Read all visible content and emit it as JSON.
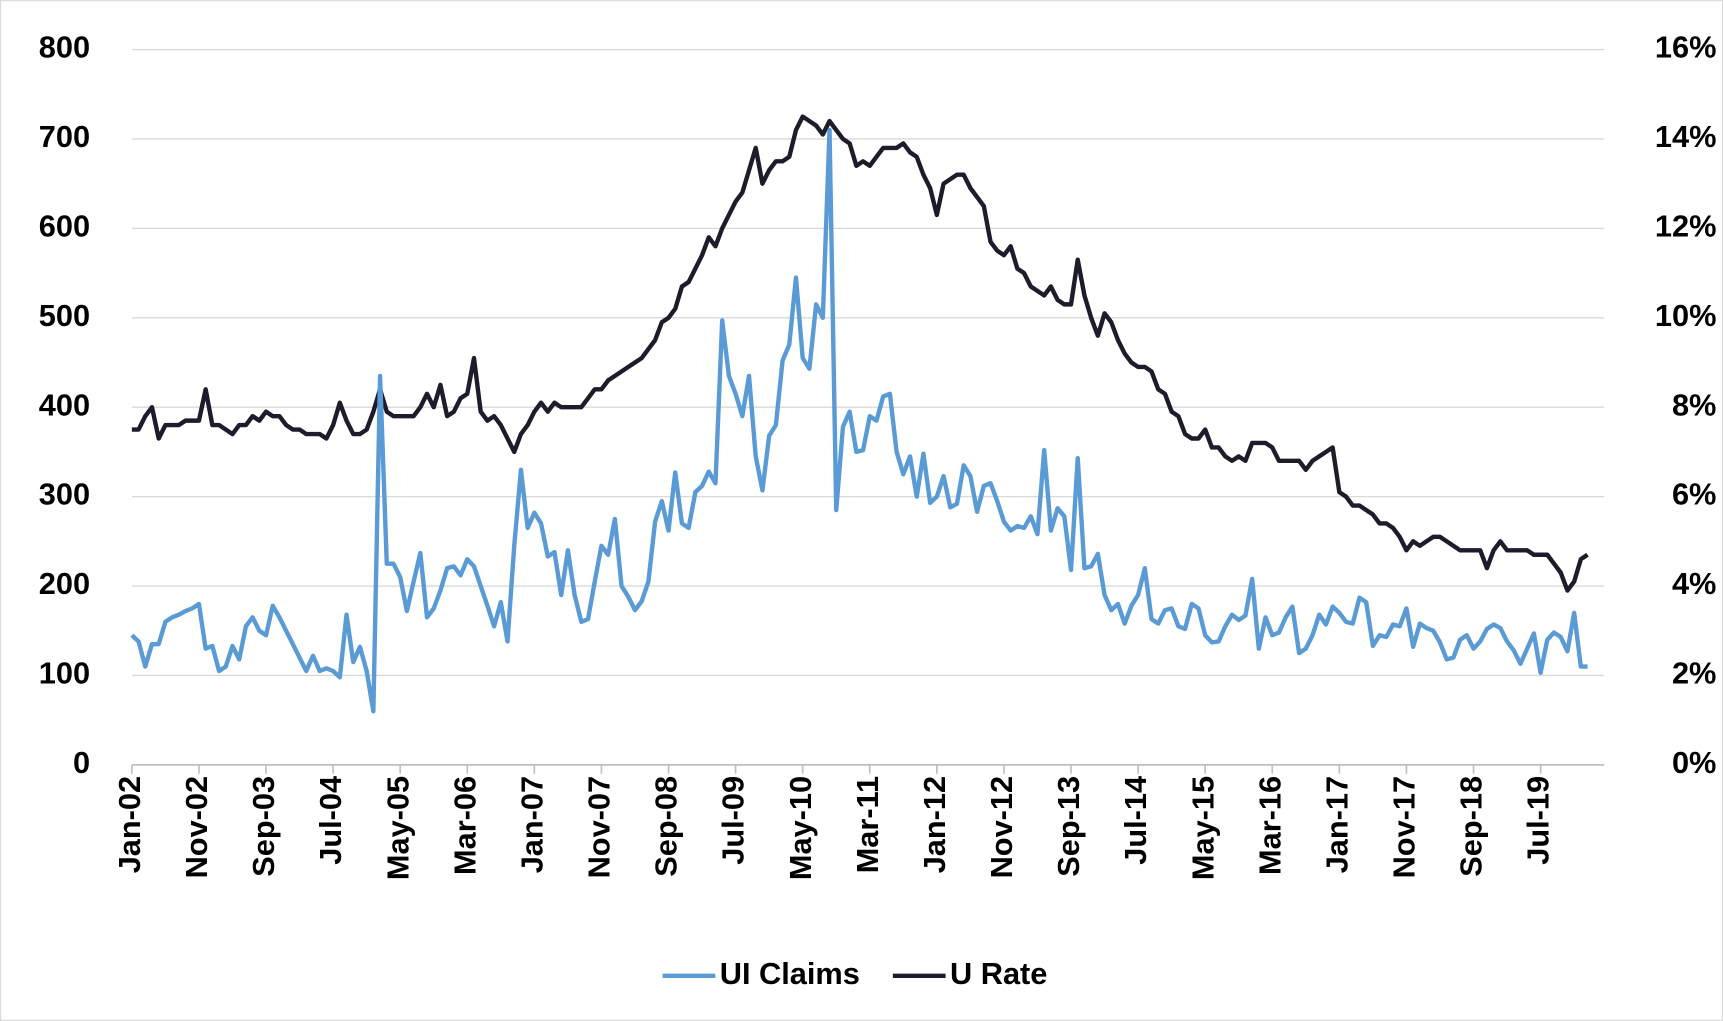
{
  "chart_data": {
    "type": "line",
    "categories": [
      "Jan-02",
      null,
      null,
      null,
      null,
      null,
      null,
      null,
      null,
      null,
      "Nov-02",
      null,
      null,
      null,
      null,
      null,
      null,
      null,
      null,
      null,
      "Sep-03",
      null,
      null,
      null,
      null,
      null,
      null,
      null,
      null,
      null,
      "Jul-04",
      null,
      null,
      null,
      null,
      null,
      null,
      null,
      null,
      null,
      "May-05",
      null,
      null,
      null,
      null,
      null,
      null,
      null,
      null,
      null,
      "Mar-06",
      null,
      null,
      null,
      null,
      null,
      null,
      null,
      null,
      null,
      "Jan-07",
      null,
      null,
      null,
      null,
      null,
      null,
      null,
      null,
      null,
      "Nov-07",
      null,
      null,
      null,
      null,
      null,
      null,
      null,
      null,
      null,
      "Sep-08",
      null,
      null,
      null,
      null,
      null,
      null,
      null,
      null,
      null,
      "Jul-09",
      null,
      null,
      null,
      null,
      null,
      null,
      null,
      null,
      null,
      "May-10",
      null,
      null,
      null,
      null,
      null,
      null,
      null,
      null,
      null,
      "Mar-11",
      null,
      null,
      null,
      null,
      null,
      null,
      null,
      null,
      null,
      "Jan-12",
      null,
      null,
      null,
      null,
      null,
      null,
      null,
      null,
      null,
      "Nov-12",
      null,
      null,
      null,
      null,
      null,
      null,
      null,
      null,
      null,
      "Sep-13",
      null,
      null,
      null,
      null,
      null,
      null,
      null,
      null,
      null,
      "Jul-14",
      null,
      null,
      null,
      null,
      null,
      null,
      null,
      null,
      null,
      "May-15",
      null,
      null,
      null,
      null,
      null,
      null,
      null,
      null,
      null,
      "Mar-16",
      null,
      null,
      null,
      null,
      null,
      null,
      null,
      null,
      null,
      "Jan-17",
      null,
      null,
      null,
      null,
      null,
      null,
      null,
      null,
      null,
      "Nov-17",
      null,
      null,
      null,
      null,
      null,
      null,
      null,
      null,
      null,
      "Sep-18",
      null,
      null,
      null,
      null,
      null,
      null,
      null,
      null,
      null,
      "Jul-19",
      null,
      null,
      null,
      null,
      null,
      null,
      null
    ],
    "series": [
      {
        "name": "UI Claims",
        "color": "#5b9bd5",
        "values": [
          145,
          138,
          110,
          135,
          135,
          160,
          165,
          168,
          172,
          175,
          180,
          130,
          133,
          105,
          110,
          133,
          118,
          155,
          165,
          150,
          145,
          178,
          165,
          150,
          135,
          120,
          105,
          122,
          105,
          108,
          105,
          98,
          168,
          115,
          132,
          105,
          60,
          435,
          225,
          225,
          210,
          172,
          205,
          237,
          165,
          175,
          195,
          220,
          222,
          212,
          230,
          222,
          200,
          178,
          155,
          182,
          138,
          245,
          330,
          265,
          282,
          270,
          233,
          238,
          190,
          240,
          190,
          160,
          163,
          205,
          245,
          235,
          275,
          200,
          188,
          173,
          183,
          205,
          272,
          295,
          262,
          327,
          270,
          265,
          305,
          312,
          328,
          315,
          497,
          435,
          415,
          390,
          435,
          345,
          307,
          368,
          380,
          452,
          470,
          545,
          455,
          443,
          515,
          500,
          710,
          285,
          378,
          395,
          350,
          352,
          390,
          385,
          412,
          415,
          350,
          325,
          345,
          300,
          348,
          293,
          300,
          323,
          288,
          292,
          335,
          323,
          283,
          312,
          315,
          295,
          272,
          262,
          267,
          265,
          278,
          258,
          352,
          262,
          287,
          278,
          218,
          343,
          220,
          222,
          236,
          190,
          173,
          180,
          158,
          178,
          190,
          220,
          163,
          158,
          173,
          175,
          155,
          152,
          180,
          175,
          145,
          137,
          138,
          155,
          168,
          162,
          167,
          208,
          130,
          165,
          145,
          148,
          165,
          177,
          125,
          130,
          145,
          168,
          157,
          177,
          170,
          160,
          158,
          187,
          182,
          133,
          145,
          143,
          157,
          155,
          175,
          132,
          158,
          153,
          150,
          137,
          118,
          120,
          140,
          145,
          130,
          138,
          152,
          157,
          153,
          138,
          128,
          113,
          130,
          147,
          103,
          140,
          148,
          143,
          127,
          170,
          110,
          110
        ]
      },
      {
        "name": "U Rate",
        "color": "#1c1c2b",
        "axis": "y2",
        "values": [
          7.5,
          7.5,
          7.8,
          8.0,
          7.3,
          7.6,
          7.6,
          7.6,
          7.7,
          7.7,
          7.7,
          8.4,
          7.6,
          7.6,
          7.5,
          7.4,
          7.6,
          7.6,
          7.8,
          7.7,
          7.9,
          7.8,
          7.8,
          7.6,
          7.5,
          7.5,
          7.4,
          7.4,
          7.4,
          7.3,
          7.6,
          8.1,
          7.7,
          7.4,
          7.4,
          7.5,
          7.9,
          8.4,
          7.9,
          7.8,
          7.8,
          7.8,
          7.8,
          8.0,
          8.3,
          8.0,
          8.5,
          7.8,
          7.9,
          8.2,
          8.3,
          9.1,
          7.9,
          7.7,
          7.8,
          7.6,
          7.3,
          7.0,
          7.4,
          7.6,
          7.9,
          8.1,
          7.9,
          8.1,
          8.0,
          8.0,
          8.0,
          8.0,
          8.2,
          8.4,
          8.4,
          8.6,
          8.7,
          8.8,
          8.9,
          9.0,
          9.1,
          9.3,
          9.5,
          9.9,
          10.0,
          10.2,
          10.7,
          10.8,
          11.1,
          11.4,
          11.8,
          11.6,
          12.0,
          12.3,
          12.6,
          12.8,
          13.3,
          13.8,
          13.0,
          13.3,
          13.5,
          13.5,
          13.6,
          14.2,
          14.5,
          14.4,
          14.3,
          14.1,
          14.4,
          14.2,
          14.0,
          13.9,
          13.4,
          13.5,
          13.4,
          13.6,
          13.8,
          13.8,
          13.8,
          13.9,
          13.7,
          13.6,
          13.2,
          12.9,
          12.3,
          13.0,
          13.1,
          13.2,
          13.2,
          12.9,
          12.7,
          12.5,
          11.7,
          11.5,
          11.4,
          11.6,
          11.1,
          11.0,
          10.7,
          10.6,
          10.5,
          10.7,
          10.4,
          10.3,
          10.3,
          11.3,
          10.5,
          10.0,
          9.6,
          10.1,
          9.9,
          9.5,
          9.2,
          9.0,
          8.9,
          8.9,
          8.8,
          8.4,
          8.3,
          7.9,
          7.8,
          7.4,
          7.3,
          7.3,
          7.5,
          7.1,
          7.1,
          6.9,
          6.8,
          6.9,
          6.8,
          7.2,
          7.2,
          7.2,
          7.1,
          6.8,
          6.8,
          6.8,
          6.8,
          6.6,
          6.8,
          6.9,
          7.0,
          7.1,
          6.1,
          6.0,
          5.8,
          5.8,
          5.7,
          5.6,
          5.4,
          5.4,
          5.3,
          5.1,
          4.8,
          5.0,
          4.9,
          5.0,
          5.1,
          5.1,
          5.0,
          4.9,
          4.8,
          4.8,
          4.8,
          4.8,
          4.4,
          4.8,
          5.0,
          4.8,
          4.8,
          4.8,
          4.8,
          4.7,
          4.7,
          4.7,
          4.5,
          4.3,
          3.9,
          4.1,
          4.6,
          4.7
        ]
      }
    ],
    "ylim": [
      0,
      800
    ],
    "yticks": [
      0,
      100,
      200,
      300,
      400,
      500,
      600,
      700,
      800
    ],
    "y2lim": [
      0,
      16
    ],
    "y2ticks": [
      {
        "value": 0,
        "label": "0%"
      },
      {
        "value": 2,
        "label": "2%"
      },
      {
        "value": 4,
        "label": "4%"
      },
      {
        "value": 6,
        "label": "6%"
      },
      {
        "value": 8,
        "label": "8%"
      },
      {
        "value": 10,
        "label": "10%"
      },
      {
        "value": 12,
        "label": "12%"
      },
      {
        "value": 14,
        "label": "14%"
      },
      {
        "value": 16,
        "label": "16%"
      }
    ],
    "grid": true,
    "legend": "bottom"
  }
}
